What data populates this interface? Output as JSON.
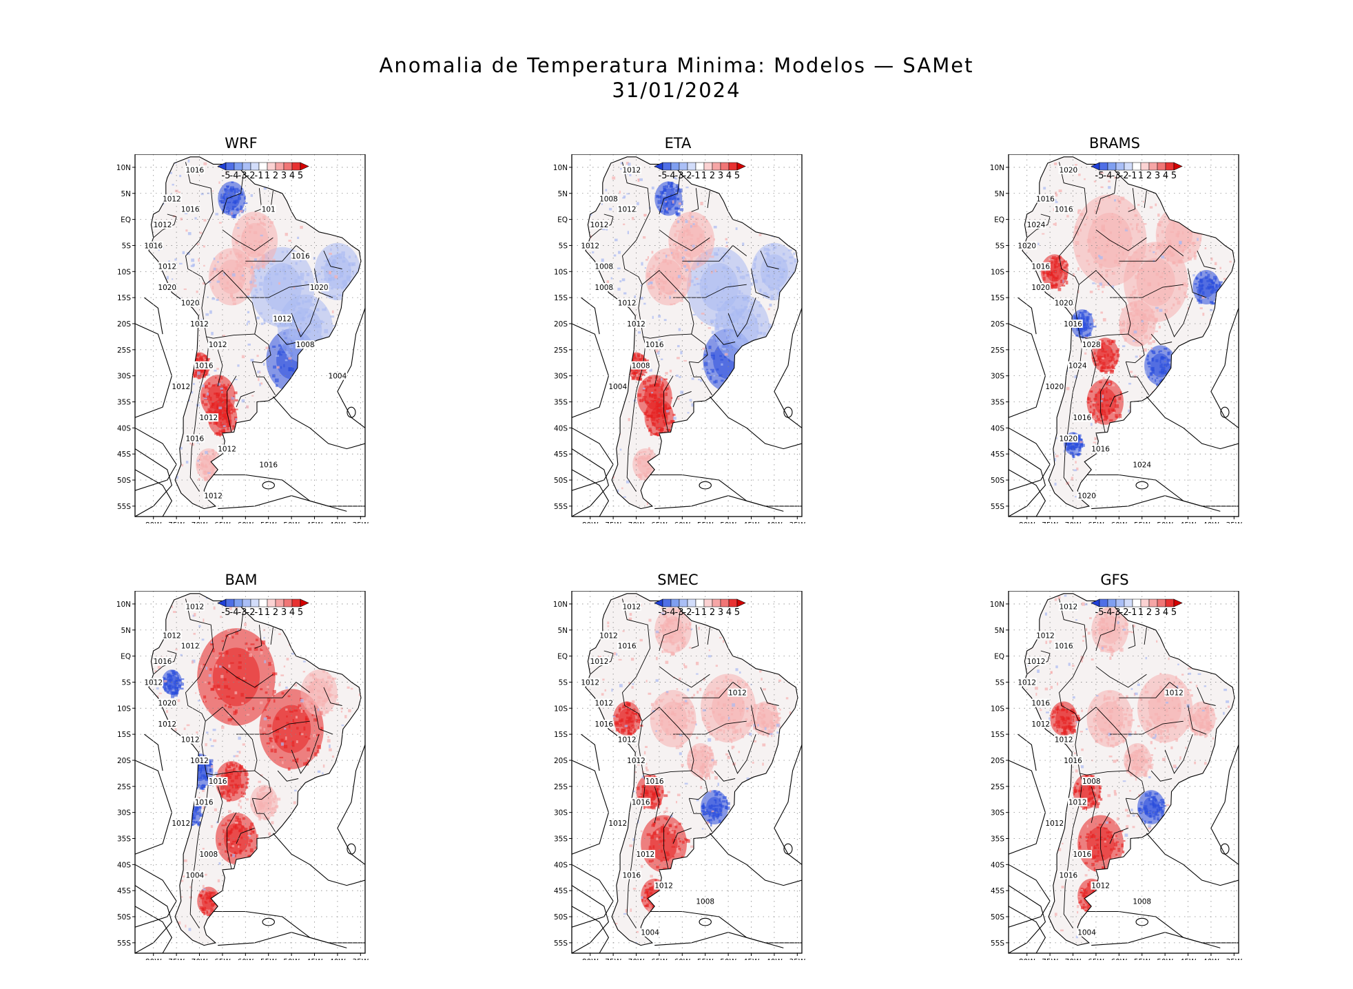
{
  "title": {
    "line1": "Anomalia de Temperatura Minima: Modelos — SAMet",
    "line2": "31/01/2024"
  },
  "lat_labels": [
    "10N",
    "5N",
    "EQ",
    "5S",
    "10S",
    "15S",
    "20S",
    "25S",
    "30S",
    "35S",
    "40S",
    "45S",
    "50S",
    "55S"
  ],
  "lon_labels": [
    "80W",
    "75W",
    "70W",
    "65W",
    "60W",
    "55W",
    "50W",
    "45W",
    "40W",
    "35W"
  ],
  "colorbar": {
    "labels": [
      "-5",
      "-4",
      "-3",
      "-2",
      "-1",
      "1",
      "2",
      "3",
      "4",
      "5"
    ],
    "colors": [
      "#1f3fd6",
      "#4f6fe6",
      "#7f9ff0",
      "#aabff6",
      "#d2ddfa",
      "#ffffff",
      "#fbd2d2",
      "#f6a6a6",
      "#f07676",
      "#e83232",
      "#d40000"
    ]
  },
  "colors": {
    "cold": "#2a4ddc",
    "cold_light": "#a9b9f2",
    "warm": "#e62020",
    "warm_light": "#f6b0b0",
    "land_base": "#f6f2f2",
    "ocean": "#ffffff",
    "contour": "#000000"
  },
  "panels": [
    {
      "name": "WRF",
      "isobars": [
        "1016",
        "1012",
        "1016",
        "1012",
        "1016",
        "1012",
        "1020",
        "1020",
        "1012",
        "1012",
        "1016",
        "1012",
        "1012",
        "1016",
        "1012",
        "1016",
        "1012",
        "1016",
        "1012",
        "1008",
        "1004",
        "101",
        "1020"
      ],
      "pattern": "cold"
    },
    {
      "name": "ETA",
      "isobars": [
        "1012",
        "1008",
        "1012",
        "1012",
        "1012",
        "1008",
        "1008",
        "1012",
        "1012",
        "1016",
        "1008",
        "1004"
      ],
      "pattern": "cold"
    },
    {
      "name": "BRAMS",
      "isobars": [
        "1020",
        "1016",
        "1016",
        "1024",
        "1020",
        "1016",
        "1020",
        "1020",
        "1016",
        "1028",
        "1024",
        "1020",
        "1016",
        "1020",
        "1016",
        "1024",
        "1020"
      ],
      "pattern": "warm"
    },
    {
      "name": "BAM",
      "isobars": [
        "1012",
        "1012",
        "1012",
        "1016",
        "1012",
        "1020",
        "1012",
        "1012",
        "1012",
        "1016",
        "1016",
        "1012",
        "1008",
        "1004"
      ],
      "pattern": "hot"
    },
    {
      "name": "SMEC",
      "isobars": [
        "1012",
        "1012",
        "1016",
        "1012",
        "1012",
        "1012",
        "1016",
        "1012",
        "1012",
        "1016",
        "1016",
        "1012",
        "1012",
        "1016",
        "1012",
        "1008",
        "1004",
        "1012"
      ],
      "pattern": "warm-mixed"
    },
    {
      "name": "GFS",
      "isobars": [
        "1012",
        "1012",
        "1016",
        "1012",
        "1012",
        "1016",
        "1012",
        "1012",
        "1016",
        "1008",
        "1012",
        "1012",
        "1016",
        "1016",
        "1012",
        "1008",
        "1004",
        "1012"
      ],
      "pattern": "warm-mixed"
    }
  ]
}
